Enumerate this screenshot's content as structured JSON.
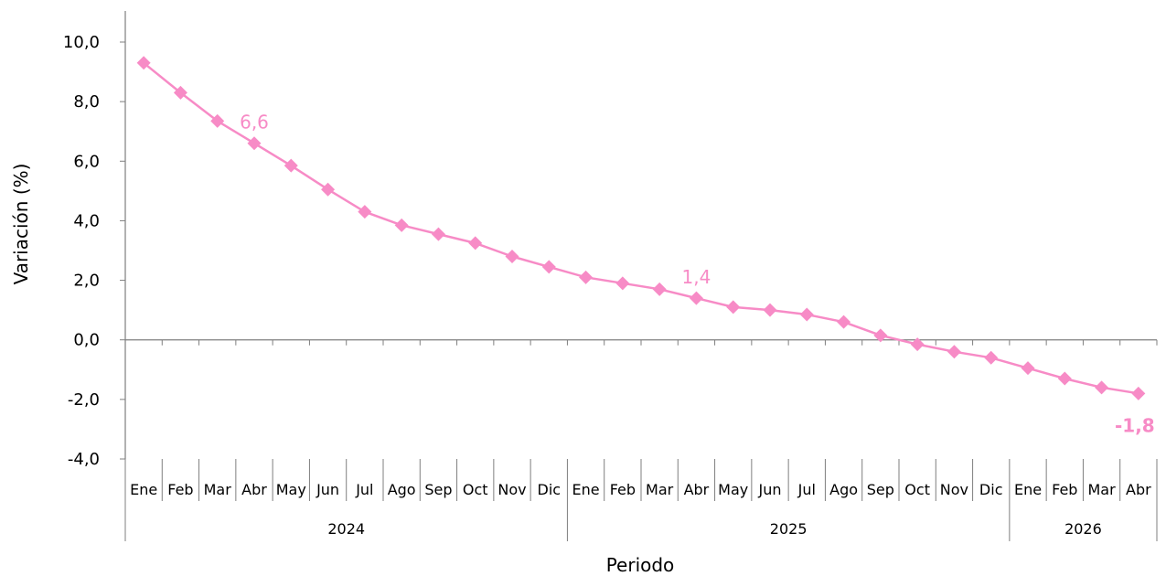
{
  "chart_data": {
    "type": "line",
    "title": "",
    "xlabel": "Periodo",
    "ylabel": "Variación (%)",
    "ylim": [
      -4,
      10
    ],
    "y_ticks": [
      {
        "value": 10,
        "label": "10,0"
      },
      {
        "value": 8,
        "label": "8,0"
      },
      {
        "value": 6,
        "label": "6,0"
      },
      {
        "value": 4,
        "label": "4,0"
      },
      {
        "value": 2,
        "label": "2,0"
      },
      {
        "value": 0,
        "label": "0,0"
      },
      {
        "value": -2,
        "label": "-2,0"
      },
      {
        "value": -4,
        "label": "-4,0"
      }
    ],
    "categories": [
      "Ene",
      "Feb",
      "Mar",
      "Abr",
      "May",
      "Jun",
      "Jul",
      "Ago",
      "Sep",
      "Oct",
      "Nov",
      "Dic",
      "Ene",
      "Feb",
      "Mar",
      "Abr",
      "May",
      "Jun",
      "Jul",
      "Ago",
      "Sep",
      "Oct",
      "Nov",
      "Dic",
      "Ene",
      "Feb",
      "Mar",
      "Abr"
    ],
    "year_groups": [
      {
        "label": "2024",
        "count": 12
      },
      {
        "label": "2025",
        "count": 12
      },
      {
        "label": "2026",
        "count": 4
      }
    ],
    "series": [
      {
        "values": [
          9.3,
          8.3,
          7.35,
          6.6,
          5.85,
          5.05,
          4.3,
          3.85,
          3.55,
          3.25,
          2.8,
          2.45,
          2.1,
          1.9,
          1.7,
          1.4,
          1.1,
          1.0,
          0.85,
          0.6,
          0.15,
          -0.15,
          -0.4,
          -0.6,
          -0.95,
          -1.3,
          -1.6,
          -1.8
        ],
        "color": "#f78bc6"
      }
    ],
    "data_labels": [
      {
        "index": 3,
        "text": "6,6",
        "bold": false,
        "position": "above"
      },
      {
        "index": 15,
        "text": "1,4",
        "bold": false,
        "position": "above"
      },
      {
        "index": 27,
        "text": "-1,8",
        "bold": true,
        "position": "below"
      }
    ],
    "grid": false,
    "legend": "none"
  }
}
